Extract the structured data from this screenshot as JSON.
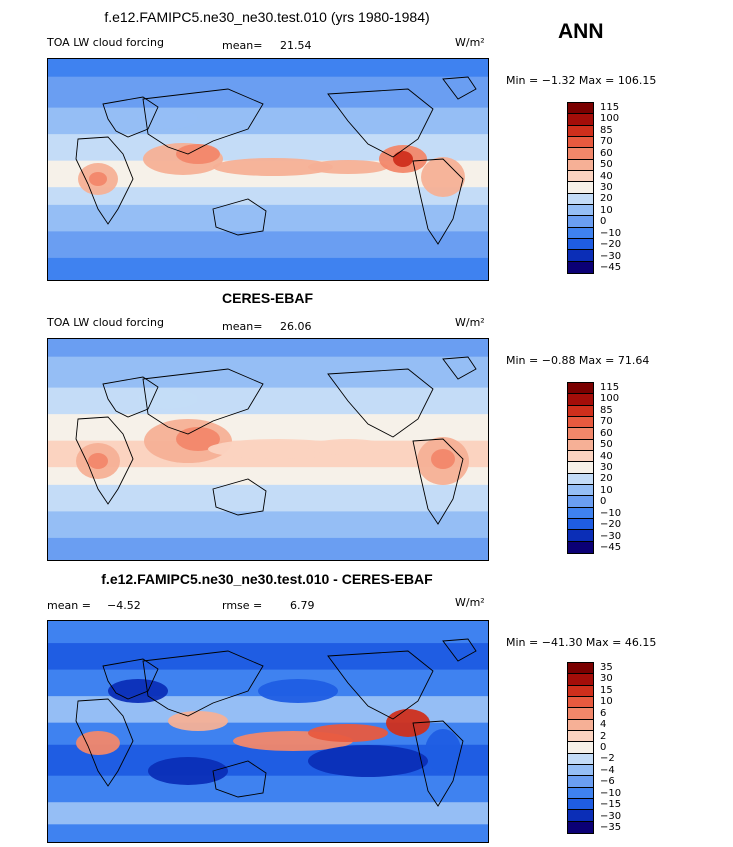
{
  "season": "ANN",
  "colors": {
    "abs_scale": [
      "#0b0075",
      "#0b2eb7",
      "#1f5de3",
      "#3f82f0",
      "#6a9ef2",
      "#95bef5",
      "#c4dcf7",
      "#f6f1e9",
      "#fbd3c0",
      "#f6b096",
      "#f2876a",
      "#e85a3f",
      "#cf2f1c",
      "#a40d09",
      "#7a0000"
    ],
    "diff_scale": [
      "#0b0075",
      "#0b2eb7",
      "#1f5de3",
      "#3f82f0",
      "#6a9ef2",
      "#95bef5",
      "#c4dcf7",
      "#f6f1e9",
      "#fbd3c0",
      "#f6b096",
      "#f2876a",
      "#e85a3f",
      "#cf2f1c",
      "#a40d09",
      "#7a0000"
    ]
  },
  "panels": [
    {
      "title": "f.e12.FAMIPC5.ne30_ne30.test.010 (yrs 1980-1984)",
      "left_label": "TOA LW cloud forcing",
      "stat1_label": "mean=",
      "stat1_value": "21.54",
      "units": "W/m²",
      "minmax": "Min =  −1.32 Max = 106.15",
      "ticks": [
        "115",
        "100",
        "85",
        "70",
        "60",
        "50",
        "40",
        "30",
        "20",
        "10",
        "0",
        "−10",
        "−20",
        "−30",
        "−45"
      ]
    },
    {
      "title": "CERES-EBAF",
      "left_label": "TOA LW cloud forcing",
      "stat1_label": "mean=",
      "stat1_value": "26.06",
      "units": "W/m²",
      "minmax": "Min =  −0.88 Max =  71.64",
      "ticks": [
        "115",
        "100",
        "85",
        "70",
        "60",
        "50",
        "40",
        "30",
        "20",
        "10",
        "0",
        "−10",
        "−20",
        "−30",
        "−45"
      ]
    },
    {
      "title": "f.e12.FAMIPC5.ne30_ne30.test.010 - CERES-EBAF",
      "stat1_label": "mean =",
      "stat1_value": "−4.52",
      "stat2_label": "rmse =",
      "stat2_value": "6.79",
      "units": "W/m²",
      "minmax": "Min = −41.30 Max =  46.15",
      "ticks": [
        "35",
        "30",
        "15",
        "10",
        "6",
        "4",
        "2",
        "0",
        "−2",
        "−4",
        "−6",
        "−10",
        "−15",
        "−30",
        "−35"
      ]
    }
  ]
}
